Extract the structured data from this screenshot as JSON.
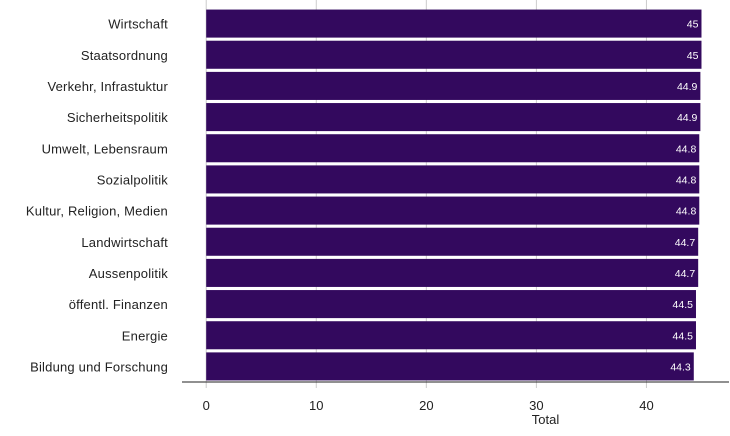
{
  "chart_data": {
    "type": "bar",
    "orientation": "horizontal",
    "categories": [
      "Wirtschaft",
      "Staatsordnung",
      "Verkehr, Infrastuktur",
      "Sicherheitspolitik",
      "Umwelt, Lebensraum",
      "Sozialpolitik",
      "Kultur, Religion, Medien",
      "Landwirtschaft",
      "Aussenpolitik",
      "öffentl. Finanzen",
      "Energie",
      "Bildung und Forschung"
    ],
    "values": [
      45,
      45,
      44.9,
      44.9,
      44.8,
      44.8,
      44.8,
      44.7,
      44.7,
      44.5,
      44.5,
      44.3
    ],
    "value_labels": [
      "45",
      "45",
      "44.9",
      "44.9",
      "44.8",
      "44.8",
      "44.8",
      "44.7",
      "44.7",
      "44.5",
      "44.5",
      "44.3"
    ],
    "xlabel": "Total",
    "ylabel": "",
    "xlim": [
      -2.2,
      47.5
    ],
    "xticks": [
      0,
      10,
      20,
      30,
      40
    ],
    "xtick_labels": [
      "0",
      "10",
      "20",
      "30",
      "40"
    ],
    "grid": "vertical",
    "bar_color": "#33095e"
  }
}
